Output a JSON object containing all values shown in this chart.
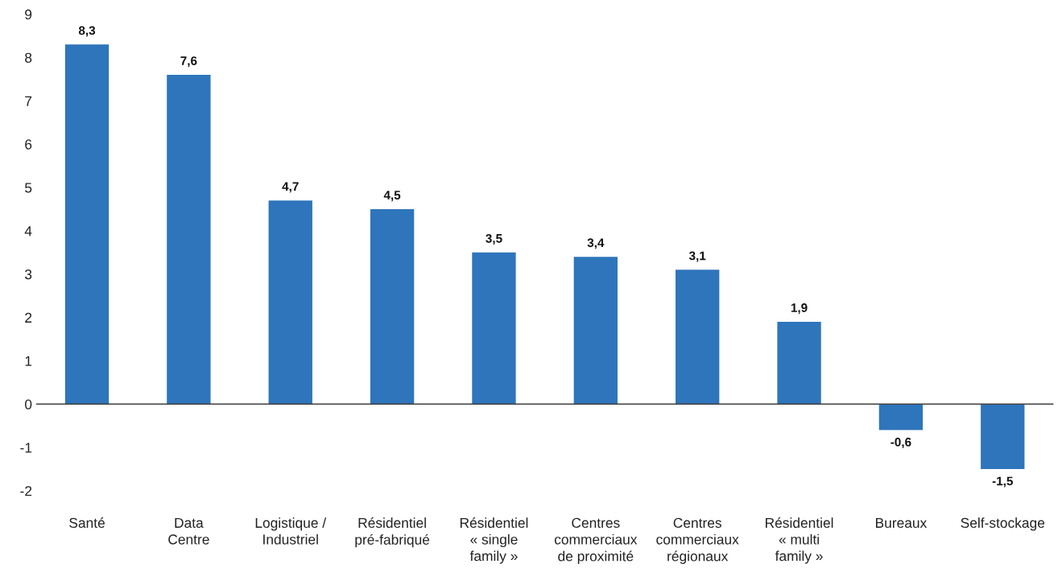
{
  "chart_data": {
    "type": "bar",
    "categories": [
      "Santé",
      "Data\nCentre",
      "Logistique /\nIndustriel",
      "Résidentiel\npré-fabriqué",
      "Résidentiel\n« single\nfamily »",
      "Centres\ncommerciaux\nde proximité",
      "Centres\ncommerciaux\nrégionaux",
      "Résidentiel\n« multi\nfamily »",
      "Bureaux",
      "Self-stockage"
    ],
    "values": [
      8.3,
      7.6,
      4.7,
      4.5,
      3.5,
      3.4,
      3.1,
      1.9,
      -0.6,
      -1.5
    ],
    "value_labels": [
      "8,3",
      "7,6",
      "4,7",
      "4,5",
      "3,5",
      "3,4",
      "3,1",
      "1,9",
      "-0,6",
      "-1,5"
    ],
    "color": "#2e75bb",
    "ylim": [
      -2,
      9
    ],
    "yticks": [
      -2,
      -1,
      0,
      1,
      2,
      3,
      4,
      5,
      6,
      7,
      8,
      9
    ],
    "ref_lines": [
      {
        "axis": "y",
        "value": 0,
        "color": "#404040"
      }
    ],
    "grid": false
  }
}
